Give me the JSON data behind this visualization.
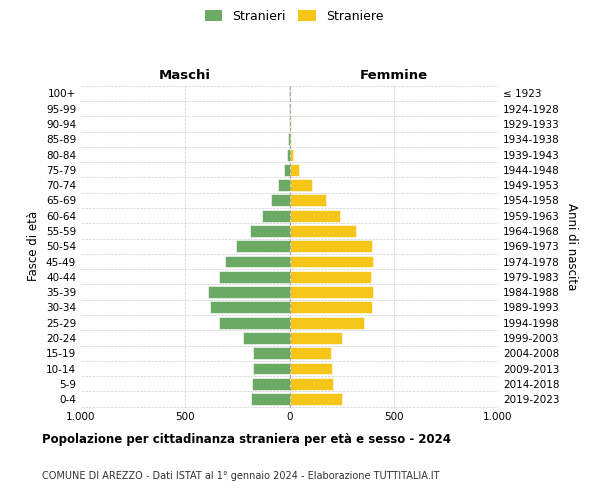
{
  "age_groups": [
    "0-4",
    "5-9",
    "10-14",
    "15-19",
    "20-24",
    "25-29",
    "30-34",
    "35-39",
    "40-44",
    "45-49",
    "50-54",
    "55-59",
    "60-64",
    "65-69",
    "70-74",
    "75-79",
    "80-84",
    "85-89",
    "90-94",
    "95-99",
    "100+"
  ],
  "birth_years": [
    "2019-2023",
    "2014-2018",
    "2009-2013",
    "2004-2008",
    "1999-2003",
    "1994-1998",
    "1989-1993",
    "1984-1988",
    "1979-1983",
    "1974-1978",
    "1969-1973",
    "1964-1968",
    "1959-1963",
    "1954-1958",
    "1949-1953",
    "1944-1948",
    "1939-1943",
    "1934-1938",
    "1929-1933",
    "1924-1928",
    "≤ 1923"
  ],
  "maschi": [
    185,
    180,
    175,
    175,
    225,
    340,
    380,
    390,
    340,
    310,
    255,
    190,
    130,
    90,
    55,
    25,
    10,
    5,
    3,
    1,
    2
  ],
  "femmine": [
    250,
    210,
    205,
    200,
    250,
    355,
    395,
    400,
    390,
    400,
    395,
    320,
    240,
    175,
    110,
    45,
    15,
    8,
    5,
    2,
    3
  ],
  "male_color": "#6aaa64",
  "female_color": "#f5c518",
  "title": "Popolazione per cittadinanza straniera per età e sesso - 2024",
  "subtitle": "COMUNE DI AREZZO - Dati ISTAT al 1° gennaio 2024 - Elaborazione TUTTITALIA.IT",
  "legend_male": "Stranieri",
  "legend_female": "Straniere",
  "header_left": "Maschi",
  "header_right": "Femmine",
  "ylabel_left": "Fasce di età",
  "ylabel_right": "Anni di nascita",
  "xlim": 1000,
  "background_color": "#ffffff",
  "grid_color": "#cccccc"
}
